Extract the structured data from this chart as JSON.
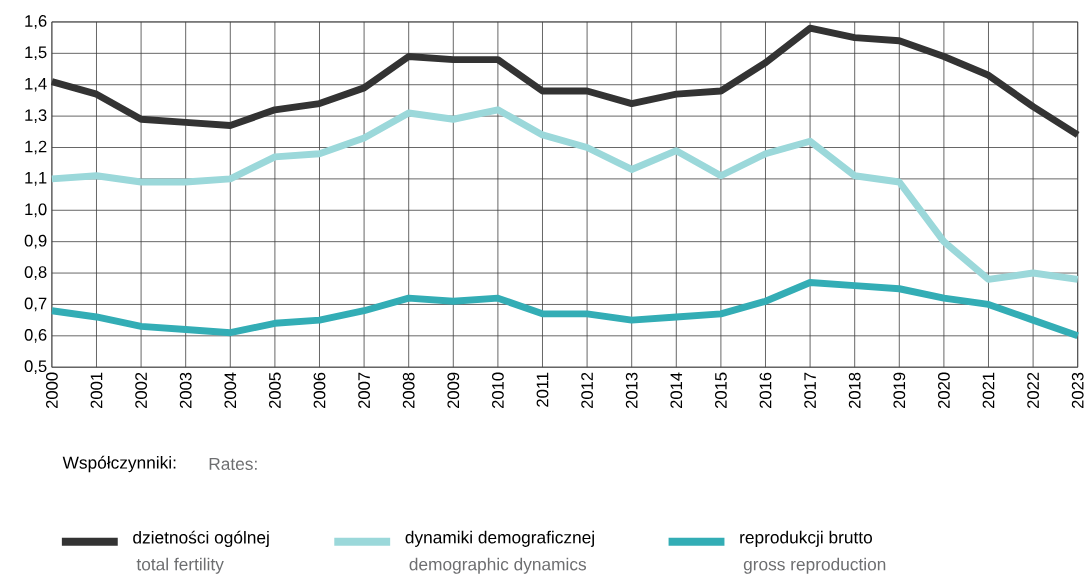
{
  "chart_data": {
    "type": "line",
    "x": [
      2000,
      2001,
      2002,
      2003,
      2004,
      2005,
      2006,
      2007,
      2008,
      2009,
      2010,
      2011,
      2012,
      2013,
      2014,
      2015,
      2016,
      2017,
      2018,
      2019,
      2020,
      2021,
      2022,
      2023
    ],
    "series": [
      {
        "name": "dzietności ogólnej",
        "color": "#333333",
        "values": [
          1.41,
          1.37,
          1.29,
          1.28,
          1.27,
          1.32,
          1.34,
          1.39,
          1.49,
          1.48,
          1.48,
          1.38,
          1.38,
          1.34,
          1.37,
          1.38,
          1.47,
          1.58,
          1.55,
          1.54,
          1.49,
          1.43,
          1.33,
          1.24
        ]
      },
      {
        "name": "dynamiki demograficznej",
        "color": "#9bd8da",
        "values": [
          1.1,
          1.11,
          1.09,
          1.09,
          1.1,
          1.17,
          1.18,
          1.23,
          1.31,
          1.29,
          1.32,
          1.24,
          1.2,
          1.13,
          1.19,
          1.11,
          1.18,
          1.22,
          1.11,
          1.09,
          0.9,
          0.78,
          0.8,
          0.78
        ]
      },
      {
        "name": "reprodukcji brutto",
        "color": "#33adb5",
        "values": [
          0.68,
          0.66,
          0.63,
          0.62,
          0.61,
          0.64,
          0.65,
          0.68,
          0.72,
          0.71,
          0.72,
          0.67,
          0.67,
          0.65,
          0.66,
          0.67,
          0.71,
          0.77,
          0.76,
          0.75,
          0.72,
          0.7,
          0.65,
          0.6
        ]
      }
    ],
    "xlim": [
      2000,
      2023
    ],
    "xticks": [
      2000,
      2001,
      2002,
      2003,
      2004,
      2005,
      2006,
      2007,
      2008,
      2009,
      2010,
      2011,
      2012,
      2013,
      2014,
      2015,
      2016,
      2017,
      2018,
      2019,
      2020,
      2021,
      2022,
      2023
    ],
    "ylim": [
      0.5,
      1.6
    ],
    "yticks": [
      {
        "value": 0.5,
        "label": "0,5"
      },
      {
        "value": 0.6,
        "label": "0,6"
      },
      {
        "value": 0.7,
        "label": "0,7"
      },
      {
        "value": 0.8,
        "label": "0,8"
      },
      {
        "value": 0.9,
        "label": "0,9"
      },
      {
        "value": 1.0,
        "label": "1,0"
      },
      {
        "value": 1.1,
        "label": "1,1"
      },
      {
        "value": 1.2,
        "label": "1,2"
      },
      {
        "value": 1.3,
        "label": "1,3"
      },
      {
        "value": 1.4,
        "label": "1,4"
      },
      {
        "value": 1.5,
        "label": "1,5"
      },
      {
        "value": 1.6,
        "label": "1,6"
      }
    ],
    "grid": true,
    "legend": "bottom",
    "legend_title": "Współczynniki:",
    "annotations": [
      "Rates:",
      "total fertility",
      "demographic dynamics",
      "gross reproduction"
    ]
  }
}
